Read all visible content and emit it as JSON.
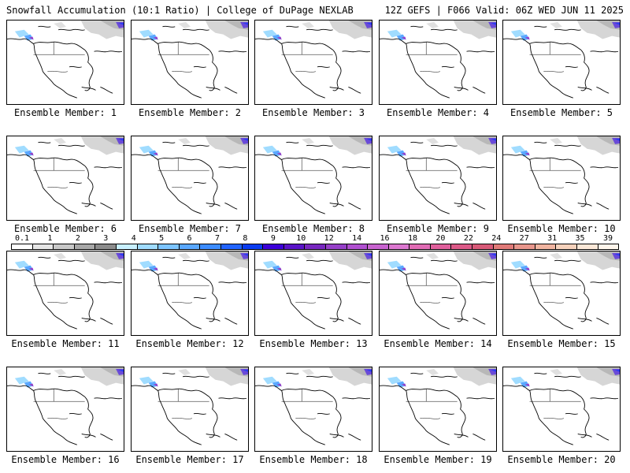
{
  "header": {
    "left_title": "Snowfall Accumulation (10:1 Ratio) | College of DuPage NEXLAB",
    "right_title": "12Z GEFS | F066 Valid: 06Z WED JUN 11 2025"
  },
  "panels": [
    {
      "label": "Ensemble Member: 1"
    },
    {
      "label": "Ensemble Member: 2"
    },
    {
      "label": "Ensemble Member: 3"
    },
    {
      "label": "Ensemble Member: 4"
    },
    {
      "label": "Ensemble Member: 5"
    },
    {
      "label": "Ensemble Member: 6"
    },
    {
      "label": "Ensemble Member: 7"
    },
    {
      "label": "Ensemble Member: 8"
    },
    {
      "label": "Ensemble Member: 9"
    },
    {
      "label": "Ensemble Member: 10"
    },
    {
      "label": "Ensemble Member: 11"
    },
    {
      "label": "Ensemble Member: 12"
    },
    {
      "label": "Ensemble Member: 13"
    },
    {
      "label": "Ensemble Member: 14"
    },
    {
      "label": "Ensemble Member: 15"
    },
    {
      "label": "Ensemble Member: 16"
    },
    {
      "label": "Ensemble Member: 17"
    },
    {
      "label": "Ensemble Member: 18"
    },
    {
      "label": "Ensemble Member: 19"
    },
    {
      "label": "Ensemble Member: 20"
    }
  ],
  "legend": {
    "ticks": [
      "0.1",
      "1",
      "2",
      "3",
      "4",
      "5",
      "6",
      "7",
      "8",
      "9",
      "10",
      "12",
      "14",
      "16",
      "18",
      "20",
      "22",
      "24",
      "27",
      "31",
      "35",
      "39"
    ],
    "colors": [
      "#ffffff",
      "#e6e6e6",
      "#c8c8c8",
      "#a8a8a8",
      "#8c8c8c",
      "#c8f0ff",
      "#a0dcff",
      "#7cc4ff",
      "#5aa8ff",
      "#3c8cff",
      "#2264ff",
      "#0a3cf0",
      "#3c00d8",
      "#5a14c8",
      "#7828c0",
      "#9640c8",
      "#b050d0",
      "#c864d0",
      "#dc78d0",
      "#e06cb4",
      "#e0609c",
      "#dc5a88",
      "#d85a78",
      "#e07a78",
      "#e8968c",
      "#f0b4a0",
      "#f6d2bc",
      "#fbe8d8",
      "#fff6ec"
    ]
  }
}
